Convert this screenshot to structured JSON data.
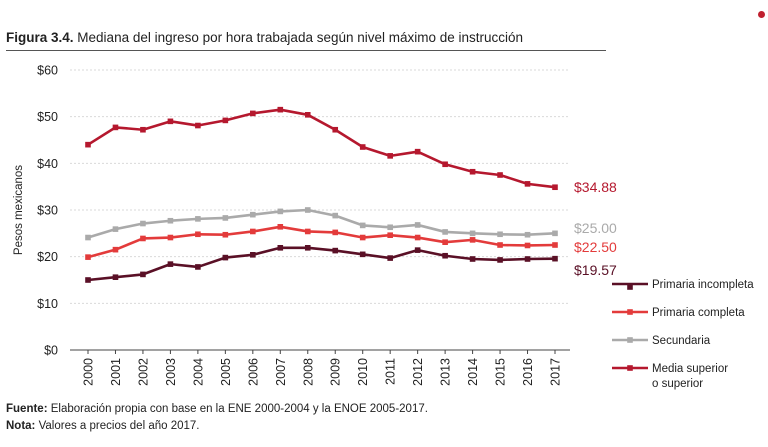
{
  "header": {
    "figure_label": "Figura 3.4.",
    "figure_title": "Mediana del ingreso por hora trabajada según nivel máximo de instrucción"
  },
  "footer": {
    "source_label": "Fuente:",
    "source_text": "Elaboración propia con base en la ENE 2000-2004 y la ENOE 2005-2017.",
    "note_label": "Nota:",
    "note_text": "Valores a precios del año 2017."
  },
  "chart_data": {
    "type": "line",
    "title": "Mediana del ingreso por hora trabajada según nivel máximo de instrucción",
    "xlabel": "",
    "ylabel": "Pesos mexicanos",
    "ylim": [
      0,
      60
    ],
    "yticks": [
      0,
      10,
      20,
      30,
      40,
      50,
      60
    ],
    "ytick_labels": [
      "$0",
      "$10",
      "$20",
      "$30",
      "$40",
      "$50",
      "$60"
    ],
    "grid": true,
    "legend_position": "right",
    "categories": [
      "2000",
      "2001",
      "2002",
      "2003",
      "2004",
      "2005",
      "2006",
      "2007",
      "2008",
      "2009",
      "2010",
      "2011",
      "2012",
      "2013",
      "2014",
      "2015",
      "2016",
      "2017"
    ],
    "series": [
      {
        "name": "Primaria incompleta",
        "legend_lines": [
          "Primaria incompleta"
        ],
        "color": "#5a1026",
        "values": [
          15.0,
          15.6,
          16.2,
          18.4,
          17.8,
          19.8,
          20.4,
          21.9,
          21.9,
          21.3,
          20.5,
          19.7,
          21.4,
          20.2,
          19.5,
          19.3,
          19.5,
          19.57
        ],
        "end_label": "$19.57"
      },
      {
        "name": "Primaria completa",
        "legend_lines": [
          "Primaria completa"
        ],
        "color": "#e33b3b",
        "values": [
          19.9,
          21.5,
          23.9,
          24.1,
          24.8,
          24.7,
          25.4,
          26.4,
          25.4,
          25.2,
          24.1,
          24.6,
          24.1,
          23.1,
          23.6,
          22.5,
          22.4,
          22.5
        ],
        "end_label": "$22.50"
      },
      {
        "name": "Secundaria",
        "legend_lines": [
          "Secundaria"
        ],
        "color": "#aaaaaa",
        "values": [
          24.1,
          25.9,
          27.1,
          27.7,
          28.1,
          28.3,
          29.0,
          29.7,
          30.0,
          28.8,
          26.7,
          26.3,
          26.8,
          25.3,
          25.0,
          24.8,
          24.7,
          25.0
        ],
        "end_label": "$25.00"
      },
      {
        "name": "Media superior o superior",
        "legend_lines": [
          "Media superior",
          "o superior"
        ],
        "color": "#b5182e",
        "values": [
          44.0,
          47.7,
          47.2,
          49.0,
          48.1,
          49.2,
          50.7,
          51.5,
          50.4,
          47.2,
          43.5,
          41.6,
          42.5,
          39.8,
          38.2,
          37.5,
          35.6,
          34.88
        ],
        "end_label": "$34.88"
      }
    ]
  }
}
